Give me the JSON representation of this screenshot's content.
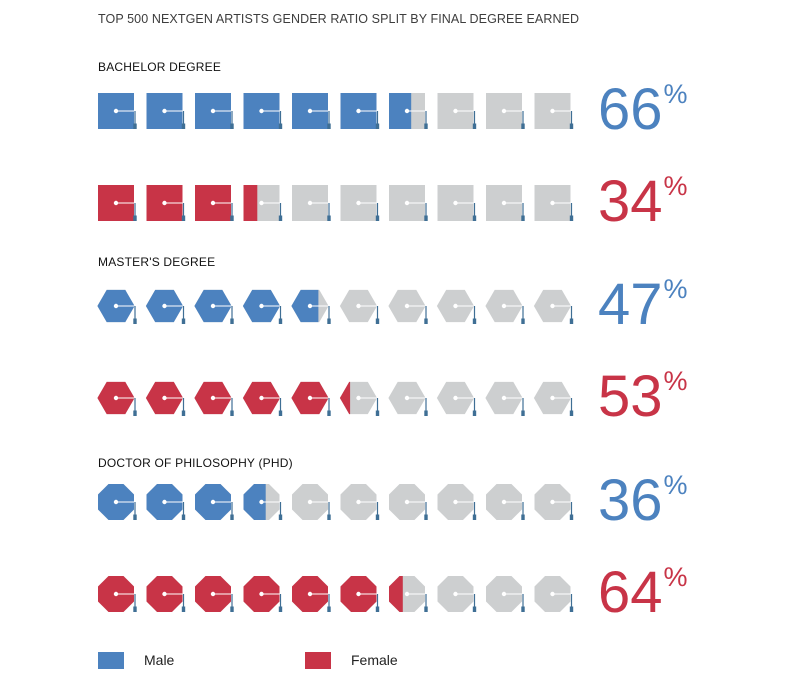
{
  "colors": {
    "male": "#4c82bf",
    "female": "#c83447",
    "empty": "#cdcfd0",
    "string": "#3f6f95"
  },
  "legend": {
    "male": "Male",
    "female": "Female"
  },
  "chart_data": {
    "type": "pictogram",
    "title": "TOP 500 NEXTGEN ARTISTS GENDER RATIO SPLIT BY FINAL DEGREE EARNED",
    "icons_per_row": 10,
    "unit": "%",
    "groups": [
      {
        "label": "BACHELOR DEGREE",
        "icon": "square-mortarboard-icon",
        "series": [
          {
            "gender": "male",
            "value": 66
          },
          {
            "gender": "female",
            "value": 34
          }
        ]
      },
      {
        "label": "MASTER'S DEGREE",
        "icon": "hexagon-mortarboard-icon",
        "series": [
          {
            "gender": "male",
            "value": 47
          },
          {
            "gender": "female",
            "value": 53
          }
        ]
      },
      {
        "label": "DOCTOR OF PHILOSOPHY (PHD)",
        "icon": "octagon-mortarboard-icon",
        "series": [
          {
            "gender": "male",
            "value": 36
          },
          {
            "gender": "female",
            "value": 64
          }
        ]
      }
    ]
  }
}
